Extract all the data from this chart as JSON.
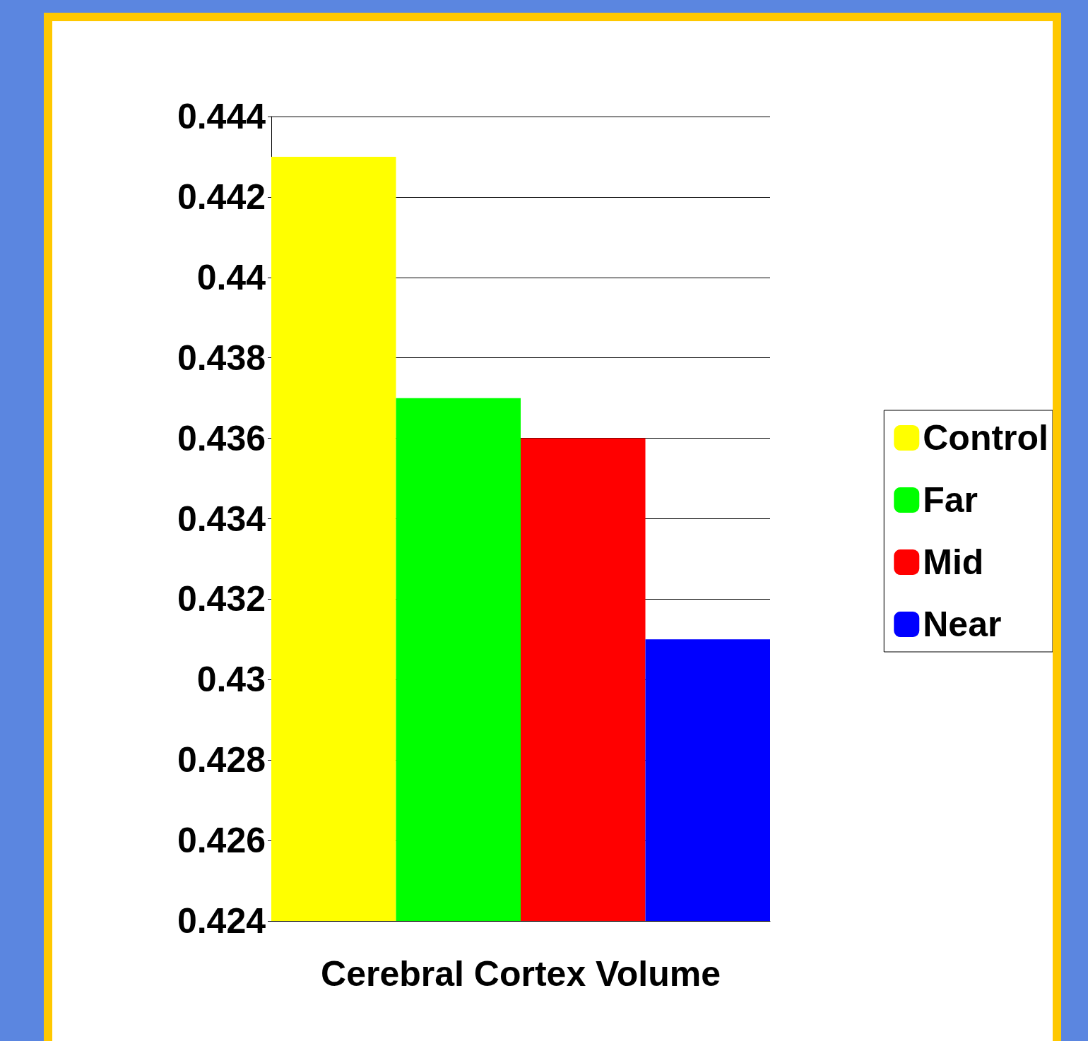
{
  "chart_data": {
    "type": "bar",
    "xlabel": "Cerebral Cortex Volume",
    "categories": [
      null,
      null,
      null,
      null
    ],
    "stacked": true,
    "series": [
      {
        "name": "Control",
        "color": "#ffff00",
        "values": [
          0.443,
          null,
          null,
          null
        ]
      },
      {
        "name": "Far",
        "color": "#00ff00",
        "values": [
          null,
          0.437,
          null,
          null
        ]
      },
      {
        "name": "Mid",
        "color": "#ff0000",
        "values": [
          null,
          null,
          0.436,
          null
        ]
      },
      {
        "name": "Near",
        "color": "#0000ff",
        "values": [
          null,
          null,
          null,
          0.431
        ]
      }
    ],
    "ylim": [
      0.424,
      0.444
    ],
    "yticks": [
      0.424,
      0.426,
      0.428,
      0.43,
      0.432,
      0.434,
      0.436,
      0.438,
      0.44,
      0.442,
      0.444
    ],
    "grid": "y",
    "legend": "right"
  }
}
